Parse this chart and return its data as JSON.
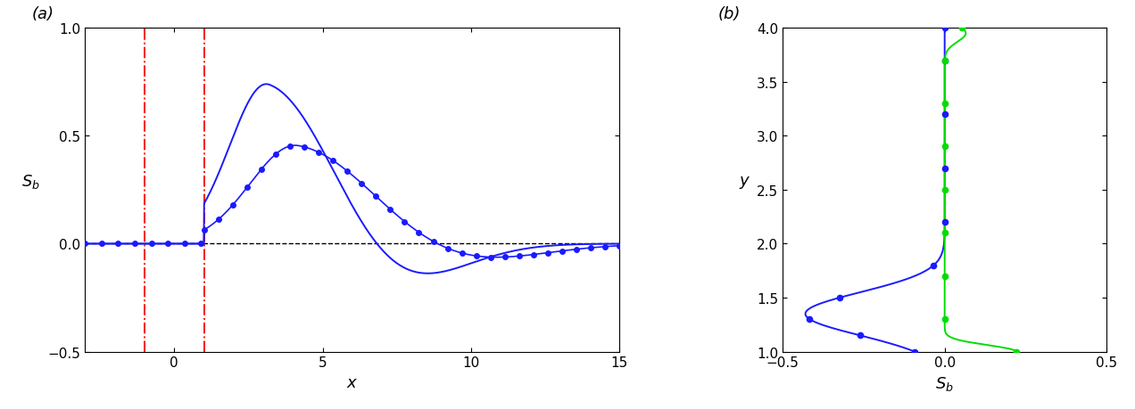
{
  "panel_a": {
    "label": "(a)",
    "xlim": [
      -3,
      15
    ],
    "ylim": [
      -0.5,
      1.0
    ],
    "xticks": [
      0,
      5,
      10,
      15
    ],
    "yticks": [
      -0.5,
      0.0,
      0.5,
      1.0
    ],
    "xlabel": "x",
    "ylabel": "S_b",
    "red_vlines": [
      -1.0,
      1.0
    ],
    "dashed_hline": 0.0,
    "line_color": "#1a1aff",
    "marker_color": "#1a1aff"
  },
  "panel_b": {
    "label": "(b)",
    "xlim": [
      -0.5,
      0.5
    ],
    "ylim": [
      1.0,
      4.0
    ],
    "xticks": [
      -0.5,
      0.0,
      0.5
    ],
    "yticks": [
      1.0,
      1.5,
      2.0,
      2.5,
      3.0,
      3.5,
      4.0
    ],
    "xlabel": "S_b",
    "ylabel": "y",
    "blue_color": "#1a1aff",
    "green_color": "#00dd00"
  }
}
